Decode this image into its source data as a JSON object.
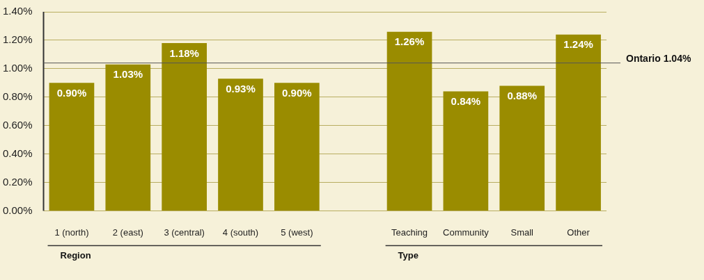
{
  "chart_data": {
    "type": "bar",
    "categories": [
      "1 (north)",
      "2 (east)",
      "3 (central)",
      "4 (south)",
      "5 (west)",
      null,
      "Teaching",
      "Community",
      "Small",
      "Other"
    ],
    "values": [
      0.9,
      1.03,
      1.18,
      0.93,
      0.9,
      null,
      1.26,
      0.84,
      0.88,
      1.24
    ],
    "value_labels": [
      "0.90%",
      "1.03%",
      "1.18%",
      "0.93%",
      "0.90%",
      null,
      "1.26%",
      "0.84%",
      "0.88%",
      "1.24%"
    ],
    "color": "#9a8c00",
    "ylim": [
      0,
      1.4
    ],
    "yticks": [
      {
        "value": 0,
        "label": "0.00%"
      },
      {
        "value": 0.2,
        "label": "0.20%"
      },
      {
        "value": 0.4,
        "label": "0.40%"
      },
      {
        "value": 0.6,
        "label": "0.60%"
      },
      {
        "value": 0.8,
        "label": "0.80%"
      },
      {
        "value": 1.0,
        "label": "1.00%"
      },
      {
        "value": 1.2,
        "label": "1.20%"
      },
      {
        "value": 1.4,
        "label": "1.40%"
      }
    ],
    "grid": "y",
    "ref_lines": [
      {
        "axis": "y",
        "value": 1.04,
        "label": "Ontario 1.04%"
      }
    ],
    "annotations": [
      "Region",
      "Type"
    ]
  }
}
